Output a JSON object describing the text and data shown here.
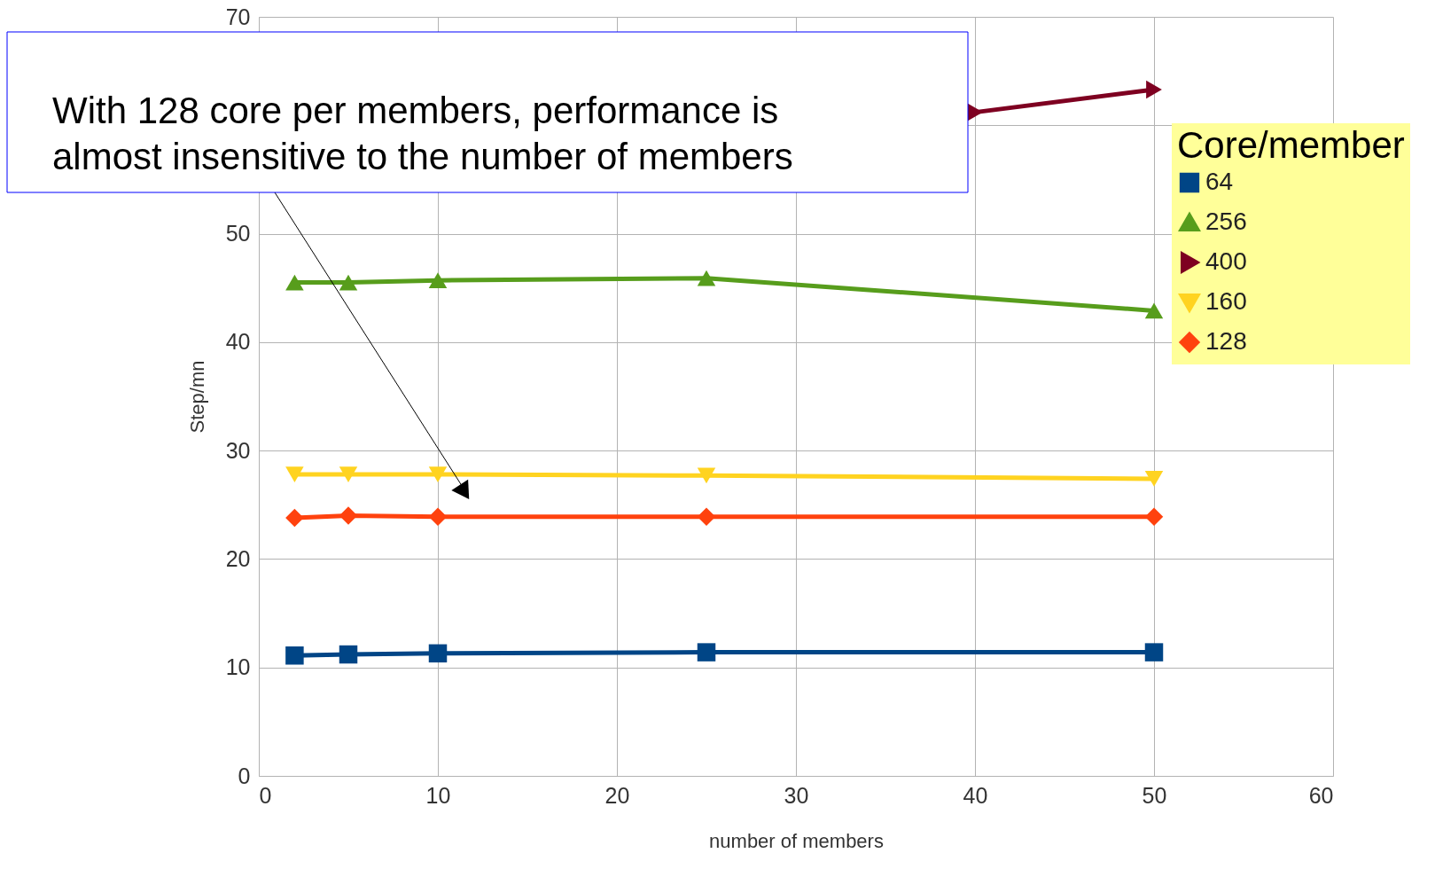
{
  "chart_data": {
    "type": "line",
    "xlabel": "number of members",
    "ylabel": "Step/mn",
    "legend_title": "Core/member",
    "x": [
      2,
      5,
      10,
      25,
      50
    ],
    "series": [
      {
        "name": "64",
        "color": "#004586",
        "marker": "square",
        "values": [
          11.1,
          11.2,
          11.3,
          11.4,
          11.4
        ]
      },
      {
        "name": "256",
        "color": "#579d1c",
        "marker": "triangle",
        "values": [
          45.5,
          45.5,
          45.7,
          45.9,
          42.9
        ]
      },
      {
        "name": "400",
        "color": "#7e0021",
        "marker": "triangle-right",
        "x": [
          40,
          50
        ],
        "values": [
          61.2,
          63.3
        ]
      },
      {
        "name": "160",
        "color": "#ffd320",
        "marker": "triangle-down",
        "values": [
          27.8,
          27.8,
          27.8,
          27.7,
          27.4
        ]
      },
      {
        "name": "128",
        "color": "#ff420e",
        "marker": "diamond",
        "values": [
          23.8,
          24.0,
          23.9,
          23.9,
          23.9
        ]
      }
    ],
    "xlim": [
      0,
      60
    ],
    "xticks": [
      0,
      10,
      20,
      30,
      40,
      50,
      60
    ],
    "ylim": [
      0,
      70
    ],
    "yticks": [
      0,
      10,
      20,
      30,
      40,
      50,
      {
        "value": 60,
        "label": null
      },
      70
    ],
    "grid": true,
    "legend": "top right",
    "line_style": "solid",
    "annotations": [
      "With 128 core per members, performance is\nalmost insensitive to the number of members"
    ]
  }
}
